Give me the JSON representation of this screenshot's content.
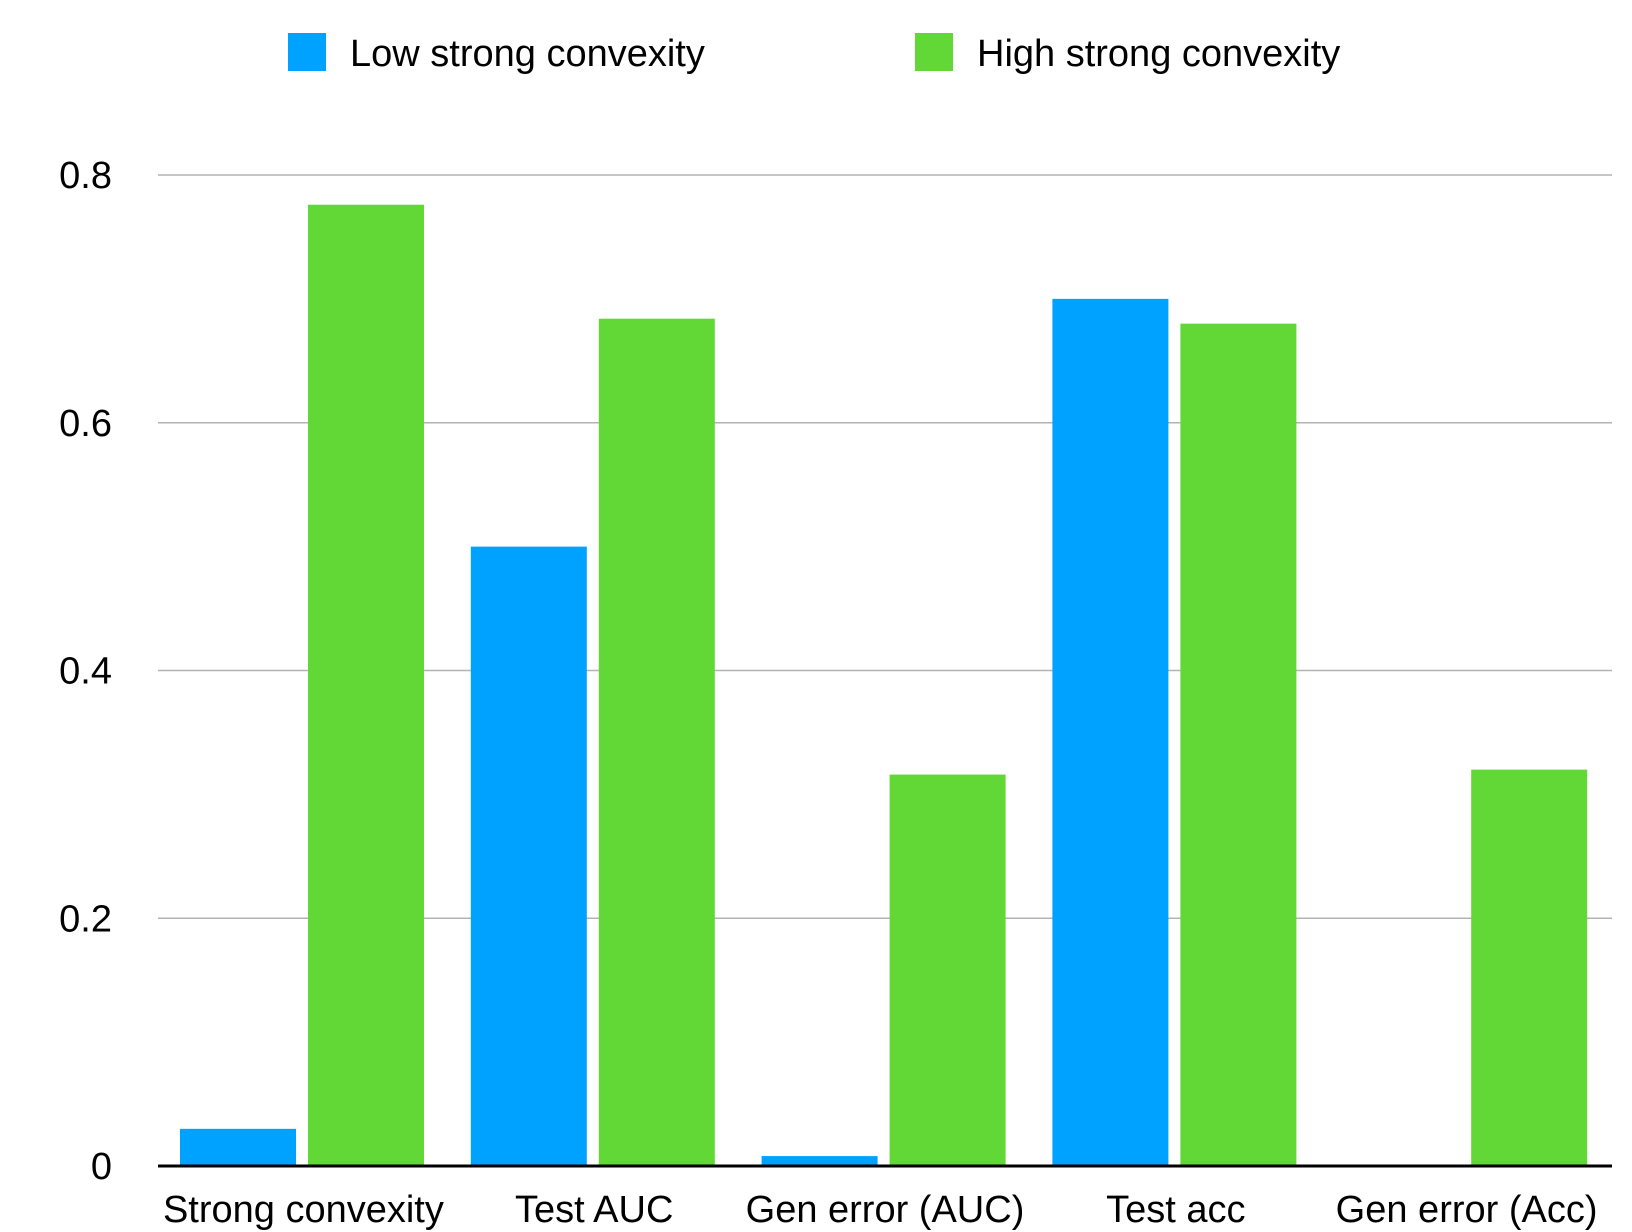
{
  "chart_data": {
    "type": "bar",
    "categories": [
      "Strong convexity",
      "Test AUC",
      "Gen error (AUC)",
      "Test acc",
      "Gen error (Acc)"
    ],
    "series": [
      {
        "name": "Low strong convexity",
        "color": "#00A2FF",
        "values": [
          0.03,
          0.5,
          0.008,
          0.7,
          0
        ]
      },
      {
        "name": "High strong convexity",
        "color": "#61D836",
        "values": [
          0.776,
          0.684,
          0.316,
          0.68,
          0.32
        ]
      }
    ],
    "title": "",
    "xlabel": "",
    "ylabel": "",
    "ylim": [
      0,
      0.8
    ],
    "yticks": [
      0,
      0.2,
      0.4,
      0.6,
      0.8
    ],
    "ytick_labels": [
      "0",
      "0.2",
      "0.4",
      "0.6",
      "0.8"
    ],
    "grid": true,
    "legend_position": "top"
  }
}
